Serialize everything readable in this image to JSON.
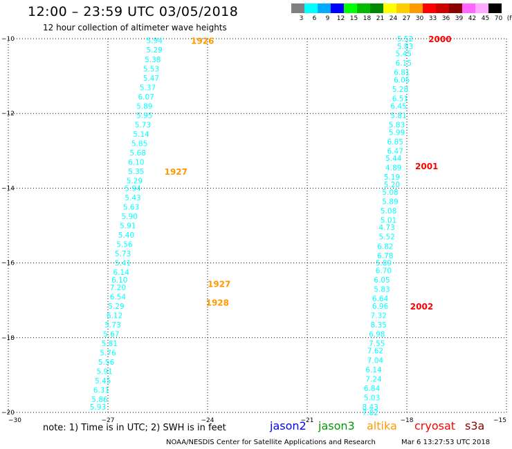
{
  "header": {
    "title": "12:00 – 23:59 UTC 03/05/2018",
    "subtitle": "12 hour collection of altimeter wave heights"
  },
  "color_scale": {
    "ticks": [
      "3",
      "6",
      "9",
      "12",
      "15",
      "18",
      "21",
      "24",
      "27",
      "30",
      "33",
      "36",
      "39",
      "42",
      "45",
      "70",
      "(ft)"
    ],
    "colors": [
      "#808080",
      "#00ffff",
      "#00aaff",
      "#0000ff",
      "#00ff00",
      "#00bb00",
      "#008800",
      "#ffff00",
      "#ffcc00",
      "#ff9900",
      "#ff0000",
      "#cc0000",
      "#880000",
      "#ff66ff",
      "#ffaaff",
      "#000000"
    ]
  },
  "note": "note: 1) Time is in UTC; 2) SWH is in feet",
  "legend": {
    "jason2": {
      "label": "jason2",
      "color": "#0000ff"
    },
    "jason3": {
      "label": "jason3",
      "color": "#009900"
    },
    "altika": {
      "label": "altika",
      "color": "#ff9900"
    },
    "cryosat": {
      "label": "cryosat",
      "color": "#ff0000"
    },
    "s3a": {
      "label": "s3a",
      "color": "#880000"
    }
  },
  "footer": {
    "org": "NOAA/NESDIS Center for Satellite Applications and Research",
    "timestamp": "Mar  6 13:27:53 UTC 2018"
  },
  "chart_data": {
    "type": "scatter",
    "x_range": [
      -30,
      -15
    ],
    "y_range": [
      -20,
      -10
    ],
    "x_ticks": [
      -30,
      -27,
      -24,
      -21,
      -18,
      -15
    ],
    "y_ticks": [
      -10,
      -12,
      -14,
      -16,
      -18,
      -20
    ],
    "x_tick_labels": [
      "−30",
      "−27",
      "−24",
      "−21",
      "−18",
      "−15"
    ],
    "y_tick_labels": [
      "−10",
      "−12",
      "−14",
      "−16",
      "−18",
      "−20"
    ],
    "grid": true,
    "point_color": "#00ffff",
    "series": [
      {
        "points": [
          {
            "x": -25.6,
            "y": -10.05,
            "v": "5.94"
          },
          {
            "x": -25.6,
            "y": -10.3,
            "v": "5.29"
          },
          {
            "x": -25.65,
            "y": -10.55,
            "v": "5.38"
          },
          {
            "x": -25.7,
            "y": -10.8,
            "v": "5.53"
          },
          {
            "x": -25.7,
            "y": -11.05,
            "v": "5.47"
          },
          {
            "x": -25.8,
            "y": -11.3,
            "v": "5.37"
          },
          {
            "x": -25.85,
            "y": -11.55,
            "v": "6.07"
          },
          {
            "x": -25.9,
            "y": -11.8,
            "v": "5.89"
          },
          {
            "x": -25.9,
            "y": -12.05,
            "v": "5.95"
          },
          {
            "x": -25.95,
            "y": -12.3,
            "v": "5.73"
          },
          {
            "x": -26.0,
            "y": -12.55,
            "v": "5.14"
          },
          {
            "x": -26.05,
            "y": -12.8,
            "v": "5.85"
          },
          {
            "x": -26.1,
            "y": -13.05,
            "v": "5.68"
          },
          {
            "x": -26.15,
            "y": -13.3,
            "v": "6.10"
          },
          {
            "x": -26.15,
            "y": -13.55,
            "v": "5.35"
          },
          {
            "x": -26.2,
            "y": -13.8,
            "v": "5.29"
          },
          {
            "x": -26.25,
            "y": -14.0,
            "v": "5.94"
          },
          {
            "x": -26.25,
            "y": -14.25,
            "v": "5.43"
          },
          {
            "x": -26.3,
            "y": -14.5,
            "v": "5.63"
          },
          {
            "x": -26.35,
            "y": -14.75,
            "v": "5.90"
          },
          {
            "x": -26.4,
            "y": -15.0,
            "v": "5.91"
          },
          {
            "x": -26.45,
            "y": -15.25,
            "v": "5.40"
          },
          {
            "x": -26.5,
            "y": -15.5,
            "v": "5.56"
          },
          {
            "x": -26.55,
            "y": -15.75,
            "v": "5.73"
          },
          {
            "x": -26.55,
            "y": -16.0,
            "v": "5.41"
          },
          {
            "x": -26.6,
            "y": -16.25,
            "v": "6.14"
          },
          {
            "x": -26.65,
            "y": -16.45,
            "v": "6.10"
          },
          {
            "x": -26.7,
            "y": -16.65,
            "v": "7.20"
          },
          {
            "x": -26.7,
            "y": -16.9,
            "v": "6.54"
          },
          {
            "x": -26.75,
            "y": -17.15,
            "v": "5.29"
          },
          {
            "x": -26.8,
            "y": -17.4,
            "v": "6.12"
          },
          {
            "x": -26.85,
            "y": -17.65,
            "v": "5.73"
          },
          {
            "x": -26.9,
            "y": -17.9,
            "v": "5.67"
          },
          {
            "x": -26.95,
            "y": -18.15,
            "v": "5.81"
          },
          {
            "x": -27.0,
            "y": -18.4,
            "v": "5.76"
          },
          {
            "x": -27.05,
            "y": -18.65,
            "v": "5.56"
          },
          {
            "x": -27.1,
            "y": -18.9,
            "v": "5.91"
          },
          {
            "x": -27.15,
            "y": -19.15,
            "v": "5.45"
          },
          {
            "x": -27.2,
            "y": -19.4,
            "v": "6.31"
          },
          {
            "x": -27.25,
            "y": -19.65,
            "v": "5.86"
          },
          {
            "x": -27.3,
            "y": -19.85,
            "v": "5.93"
          }
        ]
      },
      {
        "points": [
          {
            "x": -18.05,
            "y": -10.0,
            "v": "5.52"
          },
          {
            "x": -18.05,
            "y": -10.2,
            "v": "5.83"
          },
          {
            "x": -18.1,
            "y": -10.4,
            "v": "5.45"
          },
          {
            "x": -18.1,
            "y": -10.65,
            "v": "6.15"
          },
          {
            "x": -18.15,
            "y": -10.9,
            "v": "6.81"
          },
          {
            "x": -18.15,
            "y": -11.1,
            "v": "6.05"
          },
          {
            "x": -18.2,
            "y": -11.35,
            "v": "5.28"
          },
          {
            "x": -18.2,
            "y": -11.6,
            "v": "6.51"
          },
          {
            "x": -18.25,
            "y": -11.8,
            "v": "6.45"
          },
          {
            "x": -18.25,
            "y": -12.05,
            "v": "5.81"
          },
          {
            "x": -18.3,
            "y": -12.3,
            "v": "5.83"
          },
          {
            "x": -18.3,
            "y": -12.5,
            "v": "5.99"
          },
          {
            "x": -18.35,
            "y": -12.75,
            "v": "6.85"
          },
          {
            "x": -18.35,
            "y": -13.0,
            "v": "6.47"
          },
          {
            "x": -18.4,
            "y": -13.2,
            "v": "5.44"
          },
          {
            "x": -18.4,
            "y": -13.45,
            "v": "4.89"
          },
          {
            "x": -18.45,
            "y": -13.7,
            "v": "5.19"
          },
          {
            "x": -18.45,
            "y": -13.9,
            "v": "5.20"
          },
          {
            "x": -18.5,
            "y": -14.1,
            "v": "5.08"
          },
          {
            "x": -18.5,
            "y": -14.35,
            "v": "5.89"
          },
          {
            "x": -18.55,
            "y": -14.6,
            "v": "5.08"
          },
          {
            "x": -18.55,
            "y": -14.85,
            "v": "5.01"
          },
          {
            "x": -18.6,
            "y": -15.05,
            "v": "4.73"
          },
          {
            "x": -18.6,
            "y": -15.3,
            "v": "5.52"
          },
          {
            "x": -18.65,
            "y": -15.55,
            "v": "6.82"
          },
          {
            "x": -18.65,
            "y": -15.8,
            "v": "6.78"
          },
          {
            "x": -18.7,
            "y": -16.0,
            "v": "5.89"
          },
          {
            "x": -18.7,
            "y": -16.2,
            "v": "6.70"
          },
          {
            "x": -18.75,
            "y": -16.45,
            "v": "6.05"
          },
          {
            "x": -18.75,
            "y": -16.7,
            "v": "5.83"
          },
          {
            "x": -18.8,
            "y": -16.95,
            "v": "6.64"
          },
          {
            "x": -18.8,
            "y": -17.15,
            "v": "6.96"
          },
          {
            "x": -18.85,
            "y": -17.4,
            "v": "7.32"
          },
          {
            "x": -18.85,
            "y": -17.65,
            "v": "8.35"
          },
          {
            "x": -18.9,
            "y": -17.9,
            "v": "6.98"
          },
          {
            "x": -18.9,
            "y": -18.15,
            "v": "7.55"
          },
          {
            "x": -18.95,
            "y": -18.35,
            "v": "7.62"
          },
          {
            "x": -18.95,
            "y": -18.6,
            "v": "7.04"
          },
          {
            "x": -19.0,
            "y": -18.85,
            "v": "6.14"
          },
          {
            "x": -19.0,
            "y": -19.1,
            "v": "7.24"
          },
          {
            "x": -19.05,
            "y": -19.35,
            "v": "6.84"
          },
          {
            "x": -19.05,
            "y": -19.6,
            "v": "5.03"
          },
          {
            "x": -19.1,
            "y": -19.85,
            "v": "8.43"
          },
          {
            "x": -19.1,
            "y": -20.0,
            "v": "7.82"
          }
        ]
      }
    ],
    "time_labels": [
      {
        "x": -24.5,
        "y": -10.05,
        "text": "1926",
        "color": "#ff9900"
      },
      {
        "x": -25.3,
        "y": -13.55,
        "text": "1927",
        "color": "#ff9900"
      },
      {
        "x": -24.0,
        "y": -16.55,
        "text": "1927",
        "color": "#ff9900"
      },
      {
        "x": -24.05,
        "y": -17.05,
        "text": "1928",
        "color": "#ff9900"
      },
      {
        "x": -17.35,
        "y": -10.0,
        "text": "2000",
        "color": "#ff0000"
      },
      {
        "x": -17.75,
        "y": -13.4,
        "text": "2001",
        "color": "#ff0000"
      },
      {
        "x": -17.9,
        "y": -17.15,
        "text": "2002",
        "color": "#ff0000"
      }
    ]
  }
}
